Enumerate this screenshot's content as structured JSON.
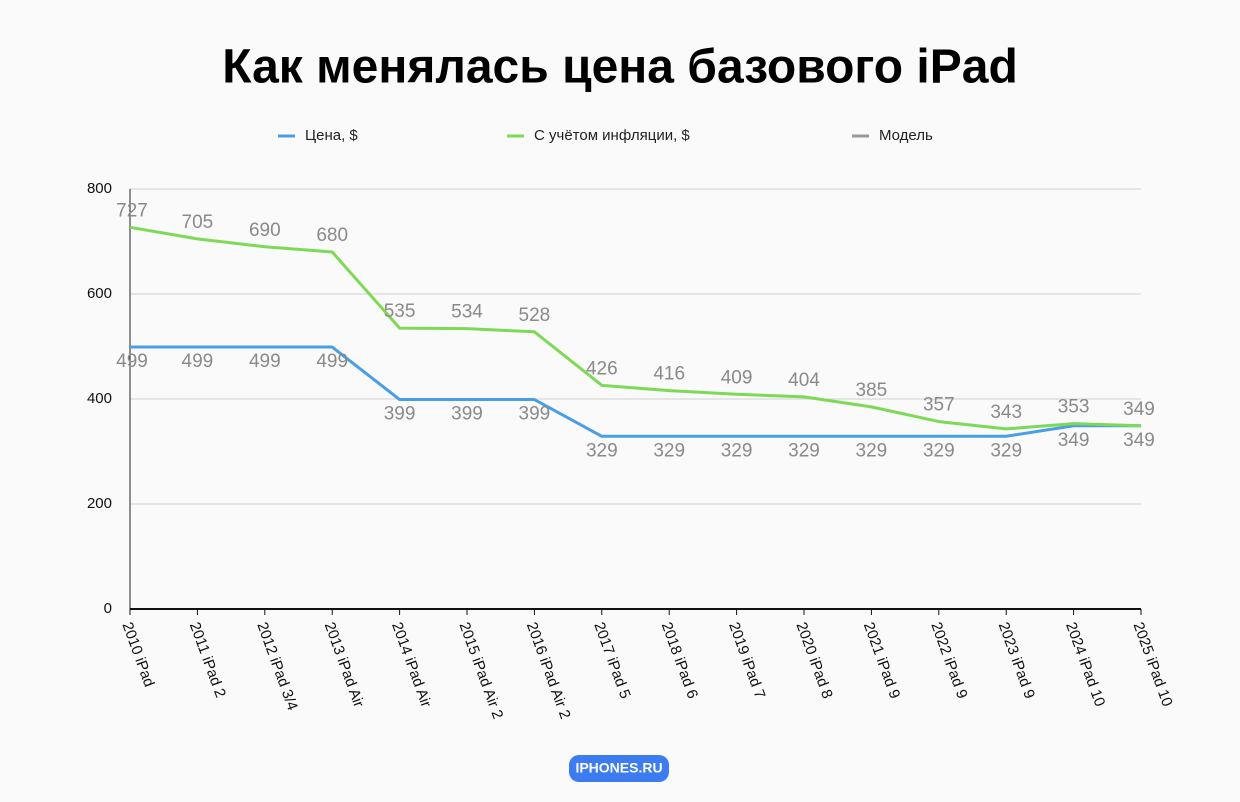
{
  "chart_data": {
    "type": "line",
    "title": "Как менялась цена базового iPad",
    "categories": [
      "2010 iPad",
      "2011 iPad 2",
      "2012 iPad 3/4",
      "2013 iPad Air",
      "2014 iPad Air",
      "2015 iPad Air 2",
      "2016 iPad Air 2",
      "2017 iPad 5",
      "2018 iPad 6",
      "2019 iPad 7",
      "2020 iPad 8",
      "2021 iPad 9",
      "2022 iPad 9",
      "2023 iPad 9",
      "2024 iPad 10",
      "2025 iPad 10"
    ],
    "categories_name": "Модель",
    "categories_color": "#999999",
    "series": [
      {
        "name": "Цена, $",
        "color": "#4a9ee6",
        "values": [
          499,
          499,
          499,
          499,
          399,
          399,
          399,
          329,
          329,
          329,
          329,
          329,
          329,
          329,
          349,
          349
        ]
      },
      {
        "name": "С учётом инфляции, $",
        "color": "#7ed957",
        "values": [
          727,
          705,
          690,
          680,
          535,
          534,
          528,
          426,
          416,
          409,
          404,
          385,
          357,
          343,
          353,
          349
        ]
      }
    ],
    "ylim": [
      0,
      800
    ],
    "yticks": [
      0,
      200,
      400,
      600,
      800
    ],
    "grid": true,
    "source": "IPHONES.RU"
  }
}
